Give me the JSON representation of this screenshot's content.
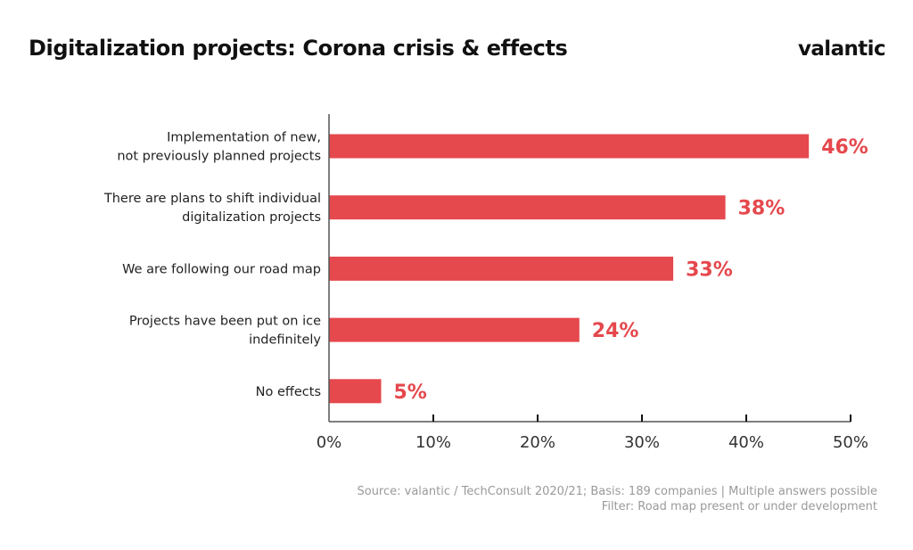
{
  "header": {
    "title": "Digitalization projects: Corona crisis & effects",
    "logo": "valantic"
  },
  "colors": {
    "bar": "#e5484d",
    "value_label": "#e5484d",
    "axis": "#555555",
    "text": "#222222",
    "source_text": "#9a9a9a"
  },
  "chart_data": {
    "type": "bar",
    "orientation": "horizontal",
    "title": "Digitalization projects: Corona crisis & effects",
    "xlabel": "",
    "ylabel": "",
    "xlim": [
      0,
      50
    ],
    "x_ticks": [
      0,
      10,
      20,
      30,
      40,
      50
    ],
    "x_tick_labels": [
      "0%",
      "10%",
      "20%",
      "30%",
      "40%",
      "50%"
    ],
    "grid": false,
    "legend": "none",
    "categories": [
      [
        "Implementation of new,",
        "not previously planned projects"
      ],
      [
        "There are plans to shift individual",
        "digitalization projects"
      ],
      [
        "We are following our road map"
      ],
      [
        "Projects have been put on ice",
        "indefinitely"
      ],
      [
        "No effects"
      ]
    ],
    "values": [
      46,
      38,
      33,
      24,
      5
    ],
    "value_labels": [
      "46%",
      "38%",
      "33%",
      "24%",
      "5%"
    ],
    "unit": "%"
  },
  "footer": {
    "source_line1": "Source: valantic / TechConsult 2020/21; Basis: 189 companies | Multiple answers possible",
    "source_line2": "Filter: Road map present or under development"
  }
}
